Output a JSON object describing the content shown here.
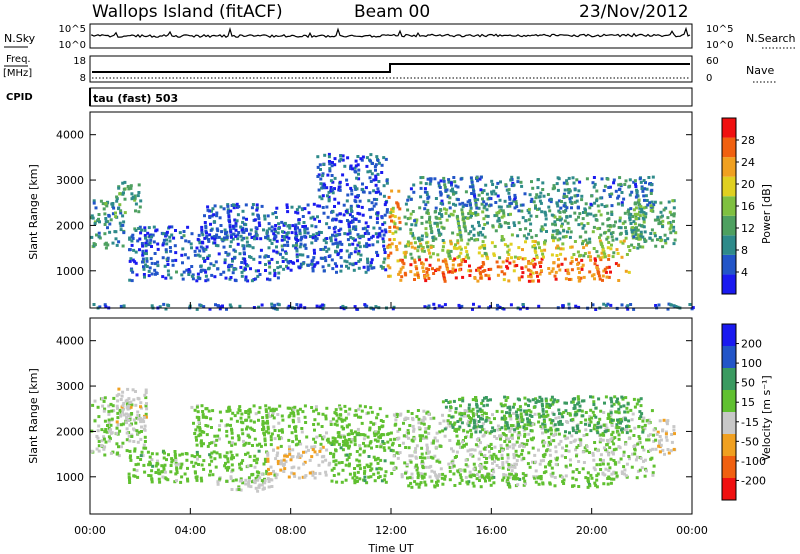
{
  "header": {
    "station": "Wallops Island (fitACF)",
    "beam": "Beam 00",
    "date": "23/Nov/2012"
  },
  "strips": {
    "nsky": {
      "left_label": "N.Sky",
      "right_label": "N.Search",
      "left_ticks": [
        "10^5",
        "10^0"
      ],
      "right_ticks": [
        "10^5",
        "10^0"
      ]
    },
    "freq": {
      "left_label": "Freq.",
      "left_unit": "[MHz]",
      "right_label": "Nave",
      "left_ticks": [
        "18",
        "8"
      ],
      "right_ticks": [
        "60",
        "0"
      ]
    },
    "cpid": {
      "label": "CPID",
      "mode": "tau (fast) 503"
    }
  },
  "chart_data": [
    {
      "type": "heatmap",
      "panel": "power",
      "ylabel": "Slant Range [km]",
      "ylim": [
        180,
        4500
      ],
      "yticks": [
        1000,
        2000,
        3000,
        4000
      ],
      "xlim": [
        0,
        24
      ],
      "colorbar": {
        "label": "Power [dB]",
        "ticks": [
          "4",
          "8",
          "12",
          "16",
          "20",
          "24",
          "28"
        ],
        "range": [
          0,
          32
        ],
        "colors": [
          "#1a1af0",
          "#2255c8",
          "#2e8a8a",
          "#4ea060",
          "#7fc040",
          "#e0d020",
          "#f0a020",
          "#f06010",
          "#f01010"
        ]
      },
      "regions": [
        {
          "t0": 0.0,
          "t1": 1.3,
          "r0": 1500,
          "r1": 2600,
          "level": 10
        },
        {
          "t0": 1.0,
          "t1": 2.0,
          "r0": 2300,
          "r1": 3000,
          "level": 12
        },
        {
          "t0": 1.5,
          "t1": 7.5,
          "r0": 800,
          "r1": 2000,
          "level": 6
        },
        {
          "t0": 4.5,
          "t1": 11.8,
          "r0": 1700,
          "r1": 2500,
          "level": 5
        },
        {
          "t0": 7.5,
          "t1": 11.8,
          "r0": 1000,
          "r1": 1900,
          "level": 6
        },
        {
          "t0": 9.0,
          "t1": 11.8,
          "r0": 2500,
          "r1": 3600,
          "level": 5
        },
        {
          "t0": 11.8,
          "t1": 12.3,
          "r0": 900,
          "r1": 2800,
          "level": 22
        },
        {
          "t0": 12.3,
          "t1": 21.5,
          "r0": 800,
          "r1": 1300,
          "level": 26
        },
        {
          "t0": 12.3,
          "t1": 21.5,
          "r0": 1300,
          "r1": 1700,
          "level": 18
        },
        {
          "t0": 12.3,
          "t1": 22.5,
          "r0": 1700,
          "r1": 2400,
          "level": 12
        },
        {
          "t0": 12.5,
          "t1": 22.5,
          "r0": 2400,
          "r1": 3100,
          "level": 8
        },
        {
          "t0": 21.5,
          "t1": 23.3,
          "r0": 1500,
          "r1": 2600,
          "level": 12
        },
        {
          "t0": 0.0,
          "t1": 24.0,
          "r0": 180,
          "r1": 300,
          "level": 5
        }
      ]
    },
    {
      "type": "heatmap",
      "panel": "velocity",
      "ylabel": "Slant Range [km]",
      "xlabel": "Time UT",
      "xticks": [
        "00:00",
        "04:00",
        "08:00",
        "12:00",
        "16:00",
        "20:00",
        "00:00"
      ],
      "ylim": [
        180,
        4500
      ],
      "yticks": [
        1000,
        2000,
        3000,
        4000
      ],
      "xlim": [
        0,
        24
      ],
      "colorbar": {
        "label": "Velocity [m s⁻¹]",
        "ticks": [
          "200",
          "100",
          "50",
          "15",
          "-15",
          "-50",
          "-100",
          "-200"
        ],
        "range": [
          -250,
          250
        ],
        "colors": [
          "#f01010",
          "#f06010",
          "#f0a020",
          "#c8c8c8",
          "#60c030",
          "#3a9a60",
          "#2255c8",
          "#1a1af0"
        ]
      },
      "regions": [
        {
          "t0": 0.0,
          "t1": 2.2,
          "r0": 1500,
          "r1": 2800,
          "level": 0
        },
        {
          "t0": 1.0,
          "t1": 2.2,
          "r0": 2200,
          "r1": 3000,
          "level": -40
        },
        {
          "t0": 1.5,
          "t1": 7.0,
          "r0": 900,
          "r1": 1600,
          "level": 30
        },
        {
          "t0": 5.0,
          "t1": 7.5,
          "r0": 700,
          "r1": 1100,
          "level": -20
        },
        {
          "t0": 7.0,
          "t1": 9.5,
          "r0": 1000,
          "r1": 1700,
          "level": -45
        },
        {
          "t0": 4.0,
          "t1": 11.8,
          "r0": 1700,
          "r1": 2600,
          "level": 25
        },
        {
          "t0": 9.5,
          "t1": 12.0,
          "r0": 900,
          "r1": 2000,
          "level": 35
        },
        {
          "t0": 12.0,
          "t1": 22.5,
          "r0": 1000,
          "r1": 2500,
          "level": 0
        },
        {
          "t0": 12.5,
          "t1": 21.0,
          "r0": 800,
          "r1": 1100,
          "level": 30
        },
        {
          "t0": 14.0,
          "t1": 22.0,
          "r0": 2000,
          "r1": 2800,
          "level": 70
        },
        {
          "t0": 22.5,
          "t1": 23.3,
          "r0": 1500,
          "r1": 2300,
          "level": -45
        }
      ]
    }
  ]
}
